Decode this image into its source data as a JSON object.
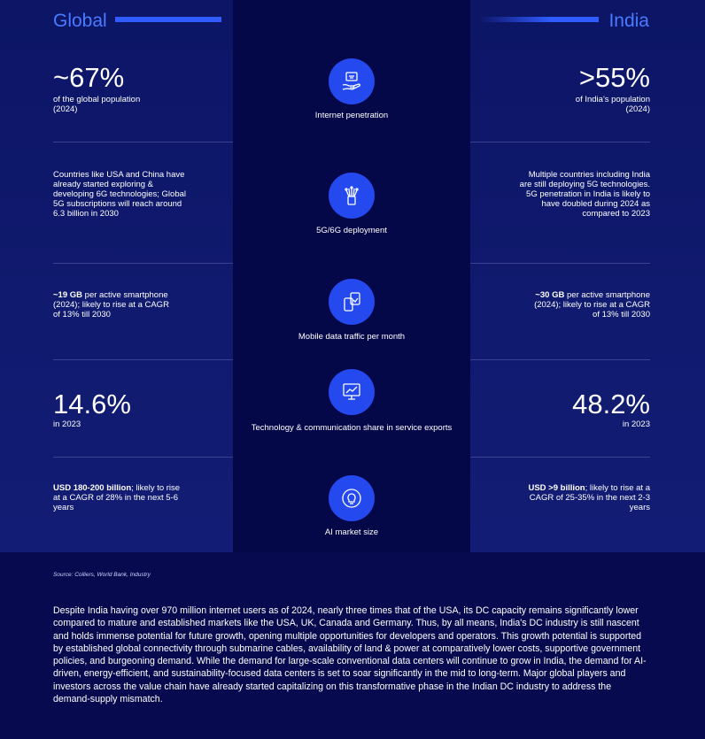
{
  "header": {
    "left": "Global",
    "right": "India"
  },
  "rows": [
    {
      "label": "Internet penetration",
      "icon": "internet-icon",
      "global_big": "~67%",
      "global_text": "of the global population (2024)",
      "india_big": ">55%",
      "india_text": "of India's population (2024)"
    },
    {
      "label": "5G/6G deployment",
      "icon": "antenna-icon",
      "global_text": "Countries like USA and China have already started exploring & developing 6G technologies; Global 5G subscriptions will reach around 6.3 billion in 2030",
      "india_text": "Multiple countries including India are still deploying 5G technologies. 5G penetration in India is likely to have doubled during 2024 as compared to 2023"
    },
    {
      "label": "Mobile data traffic per month",
      "icon": "mobile-data-icon",
      "global_bold": "~19 GB",
      "global_rest": " per active smartphone (2024); likely to rise at a CAGR of 13% till 2030",
      "india_bold": "~30 GB",
      "india_rest": " per active smartphone (2024); likely to rise at a CAGR of 13% till 2030"
    },
    {
      "label": "Technology & communication share in service exports",
      "icon": "chart-monitor-icon",
      "global_big": "14.6%",
      "global_text": "in 2023",
      "india_big": "48.2%",
      "india_text": "in 2023"
    },
    {
      "label": "AI market size",
      "icon": "ai-bulb-icon",
      "global_bold": "USD 180-200 billion",
      "global_rest": "; likely to rise at a CAGR of 28% in the next 5-6 years",
      "india_bold": "USD >9 billion",
      "india_rest": "; likely to rise at a CAGR of 25-35% in the next 2-3 years"
    }
  ],
  "source": "Source: Colliers, World Bank, Industry",
  "paragraph": "Despite India having over 970 million internet users as of 2024, nearly three times that of the USA, its DC capacity remains significantly lower compared to mature and established markets like the USA, UK, Canada and Germany. Thus, by all means, India's DC industry is still nascent and holds immense potential for future growth, opening multiple opportunities for developers and operators. This growth potential is supported by established global connectivity through submarine cables, availability of land & power at comparatively lower costs, supportive government policies, and burgeoning demand. While the demand for large-scale conventional data centers will continue to grow in India, the demand for AI-driven, energy-efficient, and sustainability-focused data centers is set to soar significantly in the mid to long-term. Major global players and investors across the value chain have already started capitalizing on this transformative phase in the Indian DC industry to address the demand-supply mismatch.",
  "colors": {
    "background": "#070a4e",
    "accent": "#2f5bff",
    "icon_circle": "#2449ee"
  }
}
